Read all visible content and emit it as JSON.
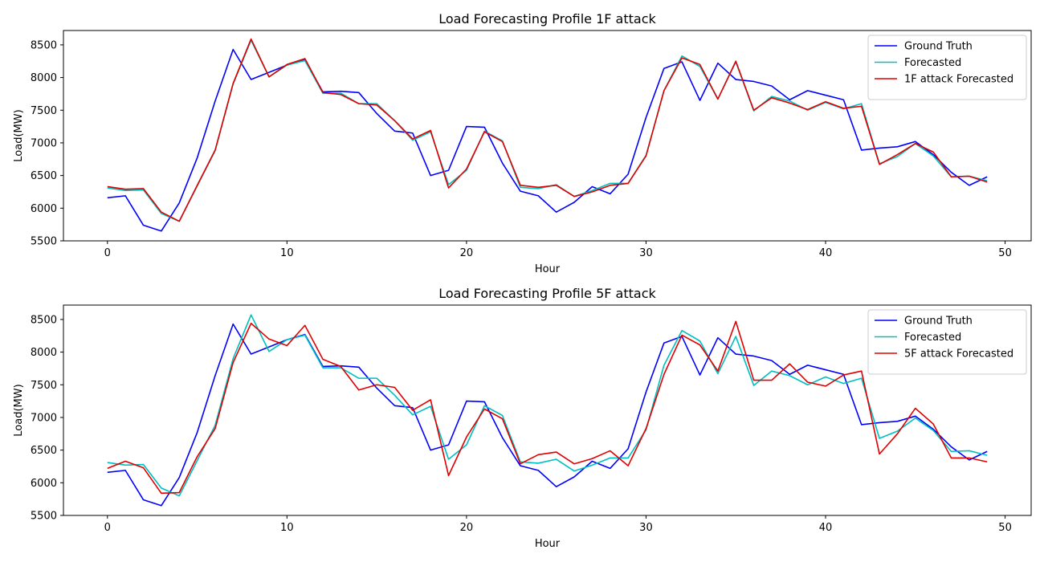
{
  "chart_data": [
    {
      "type": "line",
      "title": "Load Forecasting Profile 1F attack",
      "xlabel": "Hour",
      "ylabel": "Load(MW)",
      "xlim": [
        -2.45,
        51.45
      ],
      "ylim": [
        5500,
        8720
      ],
      "xticks": [
        0,
        10,
        20,
        30,
        40,
        50
      ],
      "yticks": [
        5500,
        6000,
        6500,
        7000,
        7500,
        8000,
        8500
      ],
      "grid": false,
      "legend_position": "top-right",
      "x": [
        0,
        1,
        2,
        3,
        4,
        5,
        6,
        7,
        8,
        9,
        10,
        11,
        12,
        13,
        14,
        15,
        16,
        17,
        18,
        19,
        20,
        21,
        22,
        23,
        24,
        25,
        26,
        27,
        28,
        29,
        30,
        31,
        32,
        33,
        34,
        35,
        36,
        37,
        38,
        39,
        40,
        41,
        42,
        43,
        44,
        45,
        46,
        47,
        48,
        49
      ],
      "series": [
        {
          "name": "Ground Truth",
          "color": "#0000ff",
          "values": [
            6160,
            6190,
            5740,
            5650,
            6080,
            6770,
            7640,
            8430,
            7970,
            8080,
            8190,
            8270,
            7780,
            7790,
            7770,
            7450,
            7180,
            7150,
            6500,
            6580,
            7250,
            7240,
            6690,
            6260,
            6190,
            5940,
            6090,
            6330,
            6220,
            6520,
            7390,
            8140,
            8240,
            7650,
            8220,
            7970,
            7940,
            7870,
            7660,
            7800,
            7730,
            7660,
            6890,
            6920,
            6940,
            7020,
            6820,
            6550,
            6350,
            6480
          ]
        },
        {
          "name": "Forecasted",
          "color": "#00bfbf",
          "values": [
            6310,
            6270,
            6280,
            5920,
            5800,
            6340,
            6880,
            7900,
            8570,
            8010,
            8190,
            8260,
            7760,
            7760,
            7600,
            7600,
            7340,
            7040,
            7170,
            6360,
            6580,
            7180,
            7030,
            6320,
            6300,
            6360,
            6180,
            6270,
            6380,
            6380,
            6810,
            7800,
            8330,
            8170,
            7670,
            8240,
            7490,
            7710,
            7640,
            7500,
            7620,
            7520,
            7600,
            6680,
            6790,
            6990,
            6800,
            6480,
            6490,
            6420
          ]
        },
        {
          "name": "1F attack Forecasted",
          "color": "#e00000",
          "values": [
            6330,
            6290,
            6300,
            5940,
            5800,
            6350,
            6890,
            7910,
            8590,
            8010,
            8200,
            8290,
            7770,
            7740,
            7600,
            7580,
            7340,
            7060,
            7190,
            6310,
            6600,
            7170,
            7020,
            6350,
            6320,
            6350,
            6180,
            6250,
            6350,
            6380,
            6800,
            7800,
            8300,
            8200,
            7670,
            8250,
            7500,
            7690,
            7610,
            7510,
            7630,
            7530,
            7560,
            6670,
            6820,
            6990,
            6860,
            6480,
            6490,
            6400
          ]
        }
      ]
    },
    {
      "type": "line",
      "title": "Load Forecasting Profile 5F attack",
      "xlabel": "Hour",
      "ylabel": "Load(MW)",
      "xlim": [
        -2.45,
        51.45
      ],
      "ylim": [
        5500,
        8720
      ],
      "xticks": [
        0,
        10,
        20,
        30,
        40,
        50
      ],
      "yticks": [
        5500,
        6000,
        6500,
        7000,
        7500,
        8000,
        8500
      ],
      "grid": false,
      "legend_position": "top-right",
      "x": [
        0,
        1,
        2,
        3,
        4,
        5,
        6,
        7,
        8,
        9,
        10,
        11,
        12,
        13,
        14,
        15,
        16,
        17,
        18,
        19,
        20,
        21,
        22,
        23,
        24,
        25,
        26,
        27,
        28,
        29,
        30,
        31,
        32,
        33,
        34,
        35,
        36,
        37,
        38,
        39,
        40,
        41,
        42,
        43,
        44,
        45,
        46,
        47,
        48,
        49
      ],
      "series": [
        {
          "name": "Ground Truth",
          "color": "#0000ff",
          "values": [
            6160,
            6190,
            5740,
            5650,
            6080,
            6770,
            7640,
            8430,
            7970,
            8080,
            8190,
            8270,
            7780,
            7790,
            7770,
            7450,
            7180,
            7150,
            6500,
            6580,
            7250,
            7240,
            6690,
            6260,
            6190,
            5940,
            6090,
            6330,
            6220,
            6520,
            7390,
            8140,
            8240,
            7650,
            8220,
            7970,
            7940,
            7870,
            7660,
            7800,
            7730,
            7660,
            6890,
            6920,
            6940,
            7020,
            6820,
            6550,
            6350,
            6480
          ]
        },
        {
          "name": "Forecasted",
          "color": "#00bfbf",
          "values": [
            6310,
            6270,
            6280,
            5920,
            5800,
            6340,
            6880,
            7900,
            8570,
            8010,
            8190,
            8260,
            7760,
            7760,
            7600,
            7600,
            7340,
            7040,
            7170,
            6360,
            6580,
            7180,
            7030,
            6320,
            6300,
            6360,
            6180,
            6270,
            6380,
            6380,
            6810,
            7800,
            8330,
            8170,
            7670,
            8240,
            7490,
            7710,
            7640,
            7500,
            7620,
            7520,
            7600,
            6680,
            6790,
            6990,
            6800,
            6480,
            6490,
            6420
          ]
        },
        {
          "name": "5F attack Forecasted",
          "color": "#e00000",
          "values": [
            6220,
            6330,
            6230,
            5840,
            5850,
            6400,
            6830,
            7840,
            8440,
            8200,
            8100,
            8410,
            7890,
            7780,
            7420,
            7500,
            7460,
            7110,
            7270,
            6110,
            6700,
            7130,
            6980,
            6290,
            6430,
            6470,
            6290,
            6370,
            6490,
            6260,
            6830,
            7660,
            8260,
            8110,
            7710,
            8470,
            7570,
            7570,
            7820,
            7540,
            7480,
            7650,
            7710,
            6440,
            6750,
            7140,
            6900,
            6380,
            6380,
            6320
          ]
        }
      ]
    }
  ]
}
